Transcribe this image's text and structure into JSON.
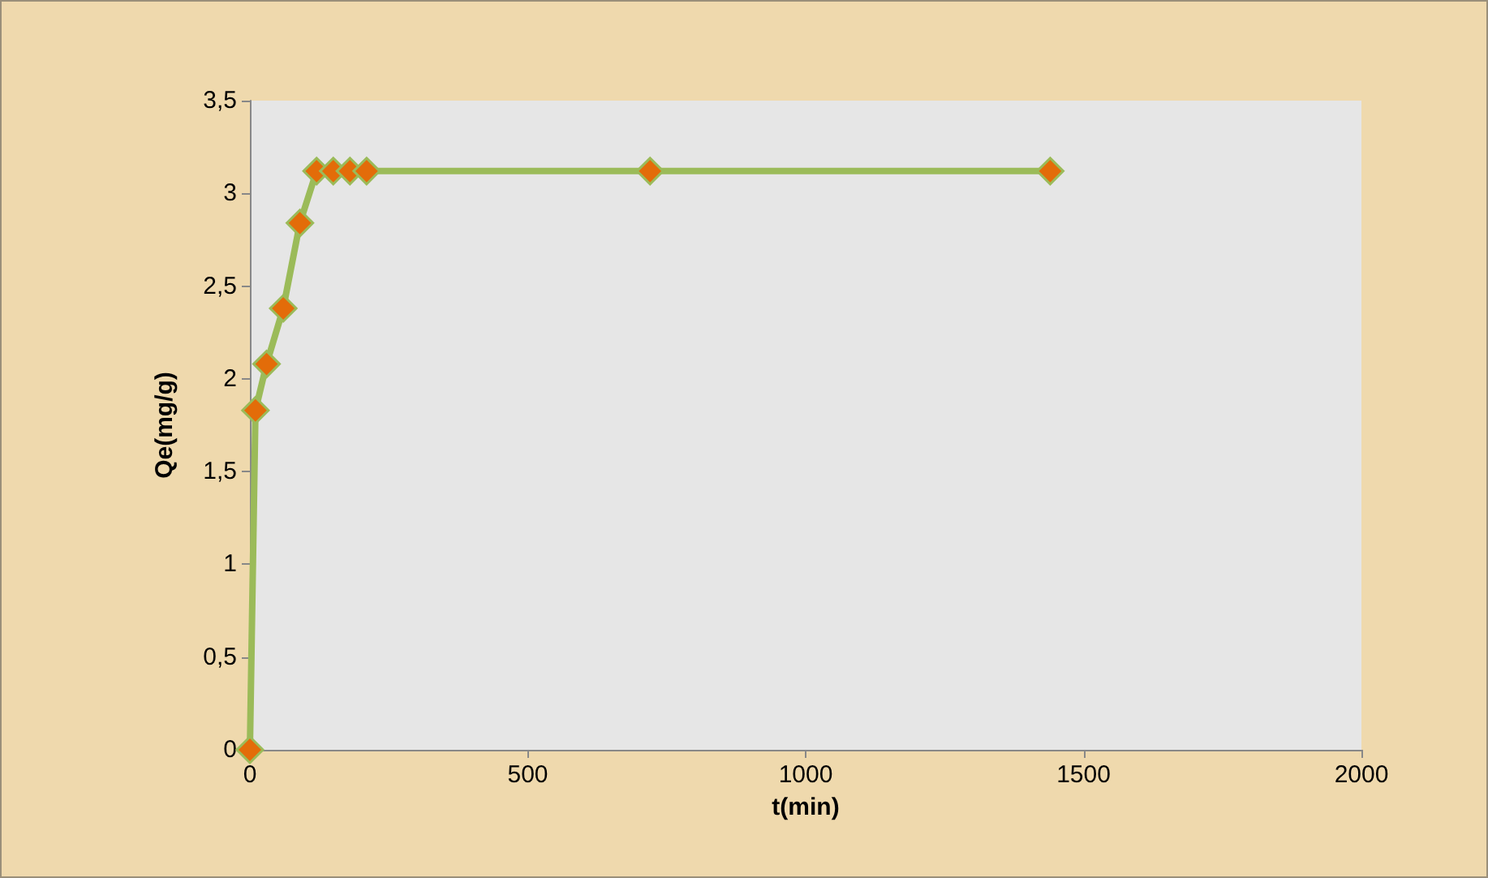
{
  "chart_data": {
    "type": "line",
    "xlabel": "t(min)",
    "ylabel": "Qe(mg/g)",
    "x": [
      0,
      10,
      30,
      60,
      90,
      120,
      150,
      180,
      210,
      720,
      1440
    ],
    "series": [
      {
        "color": "#9bbb59",
        "values": [
          0,
          1.83,
          2.08,
          2.38,
          2.84,
          3.12,
          3.12,
          3.12,
          3.12,
          3.12,
          3.12
        ]
      }
    ],
    "xlim": [
      0,
      2000
    ],
    "xticks": [
      0,
      500,
      1000,
      1500,
      2000
    ],
    "ylim": [
      0,
      3.5
    ],
    "yticks": [
      0,
      {
        "value": 0.5,
        "label": "0,5"
      },
      1,
      {
        "value": 1.5,
        "label": "1,5"
      },
      2,
      {
        "value": 2.5,
        "label": "2,5"
      },
      3,
      {
        "value": 3.5,
        "label": "3,5"
      }
    ],
    "grid": false,
    "marker": "diamond",
    "line_style": "solid"
  }
}
